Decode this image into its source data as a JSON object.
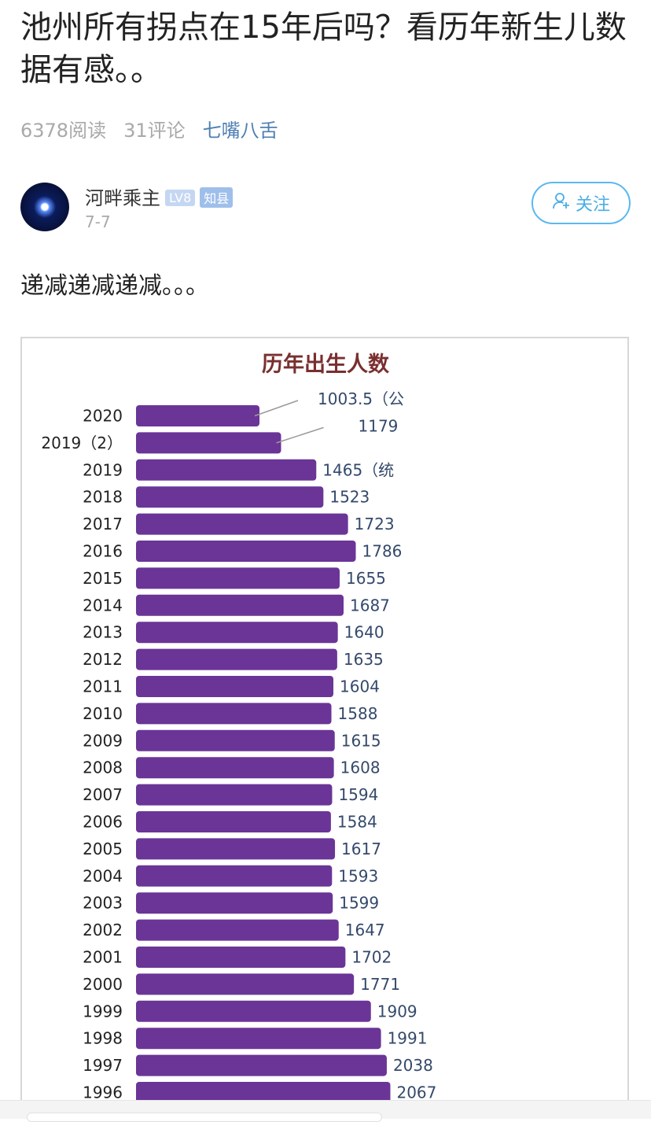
{
  "post": {
    "title": "池州所有拐点在15年后吗？看历年新生儿数据有感。。",
    "reads": "6378阅读",
    "comments": "31评论",
    "topic": "七嘴八舌",
    "body": "递减递减递减。。。"
  },
  "author": {
    "name": "河畔乘主",
    "level_badge": "LV8",
    "title_badge": "知县",
    "date": "7-7",
    "follow_label": "关注",
    "avatar_icon": "avatar-image",
    "follow_icon": "add-user-icon"
  },
  "colors": {
    "bar": "#6a3597",
    "chart_title": "#7a2f2f",
    "value_label": "#34496b",
    "follow_accent": "#4aaee6",
    "topic_link": "#4e7fb3"
  },
  "chart_data": {
    "type": "bar",
    "orientation": "horizontal",
    "title": "历年出生人数",
    "categories": [
      "2020",
      "2019（2）",
      "2019",
      "2018",
      "2017",
      "2016",
      "2015",
      "2014",
      "2013",
      "2012",
      "2011",
      "2010",
      "2009",
      "2008",
      "2007",
      "2006",
      "2005",
      "2004",
      "2003",
      "2002",
      "2001",
      "2000",
      "1999",
      "1998",
      "1997",
      "1996"
    ],
    "values": [
      1003.5,
      1179,
      1465,
      1523,
      1723,
      1786,
      1655,
      1687,
      1640,
      1635,
      1604,
      1588,
      1615,
      1608,
      1594,
      1584,
      1617,
      1593,
      1599,
      1647,
      1702,
      1771,
      1909,
      1991,
      2038,
      2067
    ],
    "value_labels": [
      "1003.5（公",
      "1179",
      "1465（统",
      "1523",
      "1723",
      "1786",
      "1655",
      "1687",
      "1640",
      "1635",
      "1604",
      "1588",
      "1615",
      "1608",
      "1594",
      "1584",
      "1617",
      "1593",
      "1599",
      "1647",
      "1702",
      "1771",
      "1909",
      "1991",
      "2038",
      "2067"
    ],
    "callout_leaders": [
      "2020",
      "2019（2）"
    ],
    "xlim": [
      0,
      2600
    ],
    "grid": false,
    "legend": "none"
  }
}
